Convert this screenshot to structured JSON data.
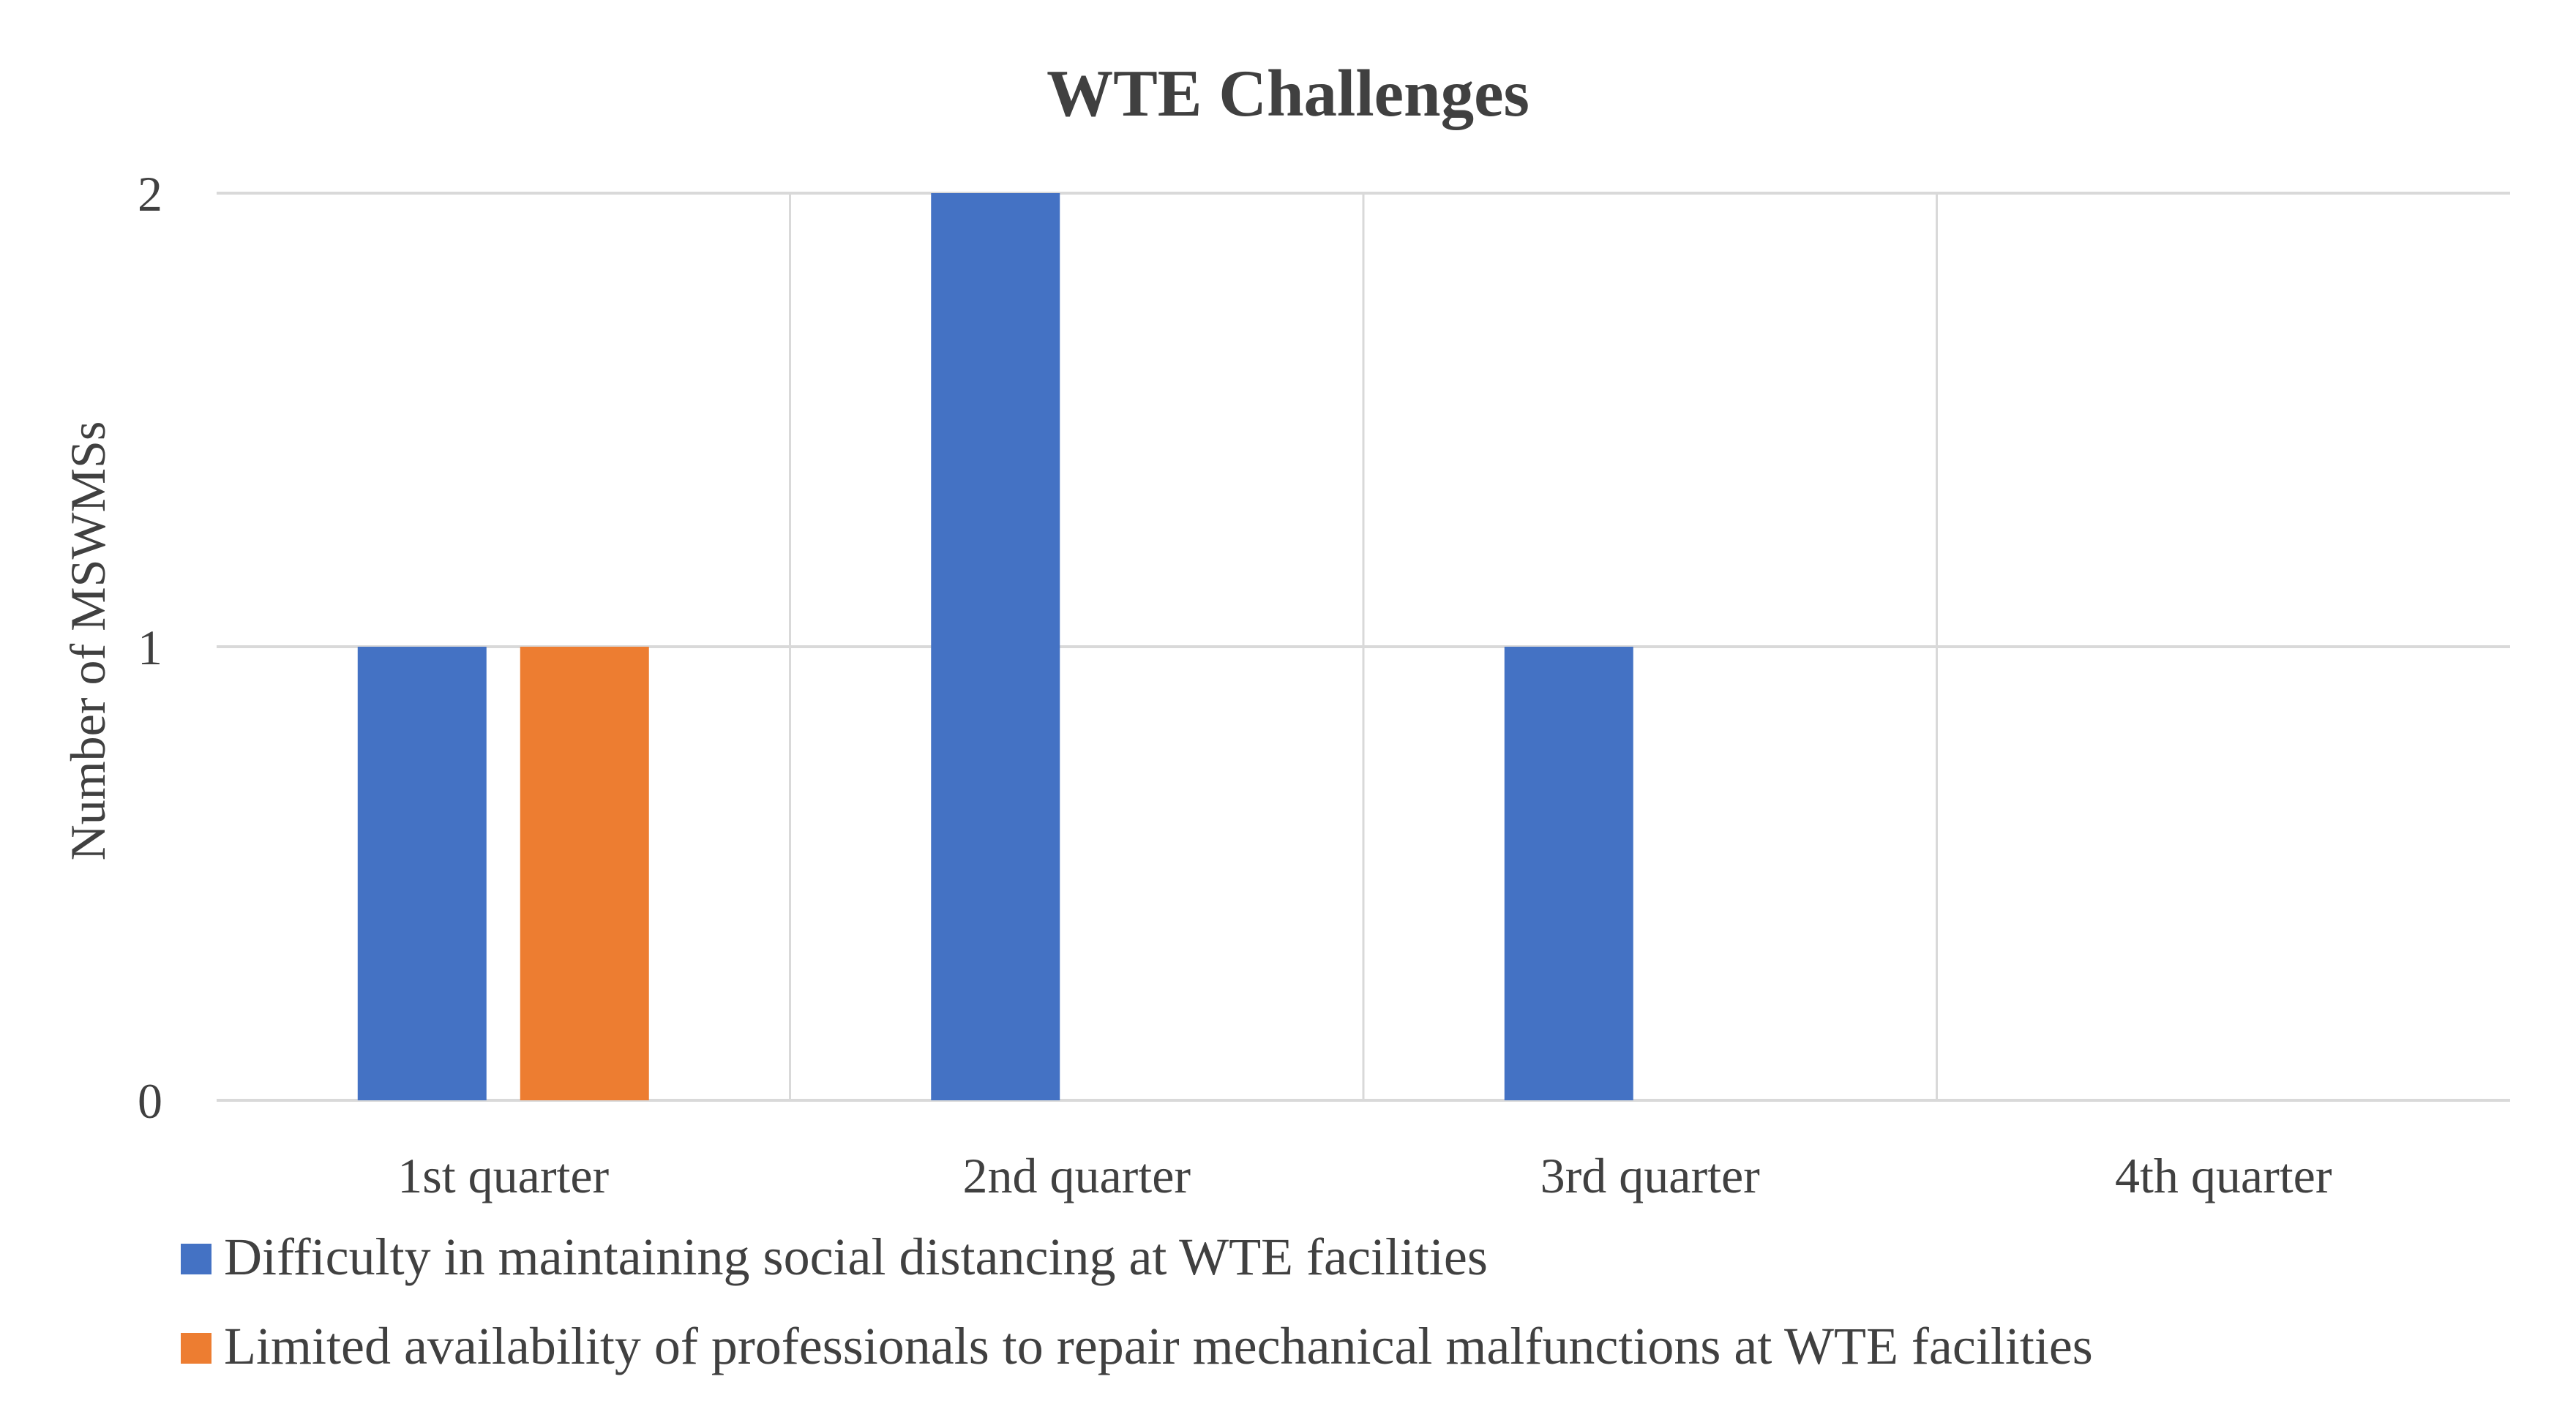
{
  "chart_data": {
    "type": "bar",
    "title": "WTE Challenges",
    "xlabel": "",
    "ylabel": "Number of MSWMSs",
    "categories": [
      "1st quarter",
      "2nd quarter",
      "3rd quarter",
      "4th quarter"
    ],
    "series": [
      {
        "name": "Difficulty in maintaining social distancing at WTE facilities",
        "color": "#4472C4",
        "values": [
          1,
          2,
          1,
          0
        ]
      },
      {
        "name": "Limited availability of professionals to repair mechanical malfunctions at WTE facilities",
        "color": "#ED7D31",
        "values": [
          1,
          0,
          0,
          0
        ]
      }
    ],
    "ylim": [
      0,
      2
    ],
    "yticks": [
      "0",
      "1",
      "2"
    ],
    "grid": true,
    "legend": "bottom-left"
  }
}
